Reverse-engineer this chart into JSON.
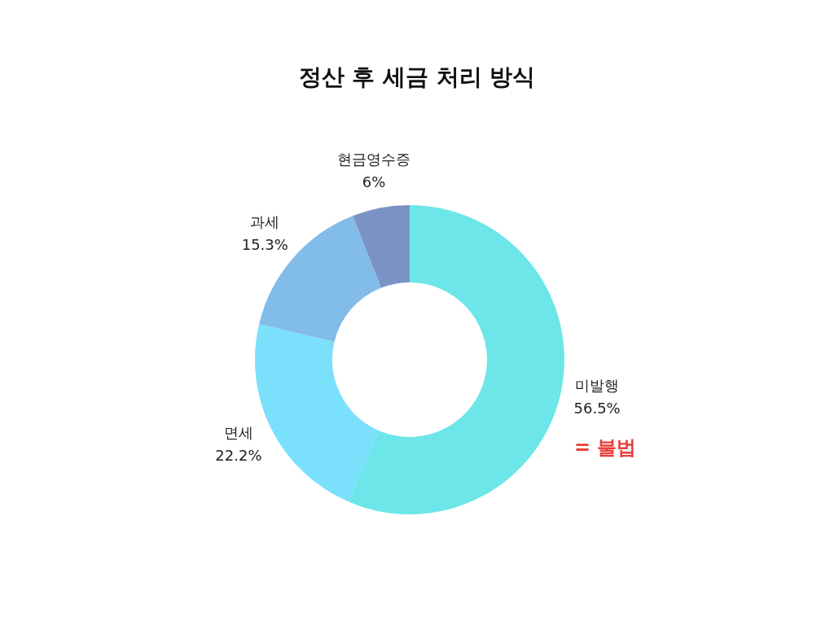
{
  "chart_data": {
    "type": "donut",
    "title": "정산 후 세금 처리 방식",
    "categories": [
      "미발행",
      "면세",
      "과세",
      "현금영수증"
    ],
    "values": [
      56.5,
      22.2,
      15.3,
      6
    ],
    "colors": [
      "#6ce6e8",
      "#7ae0fc",
      "#82bce9",
      "#7a93c4"
    ],
    "value_labels": [
      "56.5%",
      "22.2%",
      "15.3%",
      "6%"
    ],
    "legend": false,
    "annotations": [
      "= 불법"
    ]
  }
}
